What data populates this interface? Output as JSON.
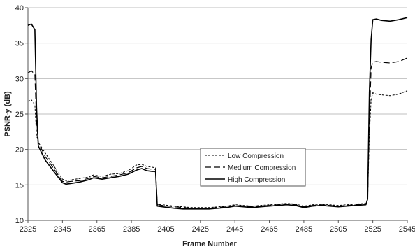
{
  "chart_data": {
    "type": "line",
    "title": "",
    "xlabel": "Frame Number",
    "ylabel": "PSNR-y (dB)",
    "xlim": [
      2325,
      2545
    ],
    "ylim": [
      10,
      40
    ],
    "x_ticks": [
      2325,
      2345,
      2365,
      2385,
      2405,
      2425,
      2445,
      2465,
      2485,
      2505,
      2525,
      2545
    ],
    "y_ticks": [
      10,
      15,
      20,
      25,
      30,
      35,
      40
    ],
    "grid": "horizontal",
    "legend_position": "center",
    "series": [
      {
        "name": "Low Compression",
        "style": "dashed-short",
        "color": "#000000",
        "points": [
          [
            2325,
            26.8
          ],
          [
            2327,
            27.0
          ],
          [
            2329,
            26.3
          ],
          [
            2330,
            22.0
          ],
          [
            2331,
            21.0
          ],
          [
            2335,
            19.5
          ],
          [
            2340,
            17.7
          ],
          [
            2345,
            15.8
          ],
          [
            2347,
            15.6
          ],
          [
            2350,
            15.7
          ],
          [
            2355,
            15.9
          ],
          [
            2360,
            16.1
          ],
          [
            2363,
            16.4
          ],
          [
            2368,
            16.2
          ],
          [
            2373,
            16.5
          ],
          [
            2378,
            16.6
          ],
          [
            2383,
            17.0
          ],
          [
            2388,
            17.8
          ],
          [
            2391,
            17.9
          ],
          [
            2394,
            17.6
          ],
          [
            2397,
            17.5
          ],
          [
            2399,
            17.4
          ],
          [
            2400,
            12.3
          ],
          [
            2403,
            12.2
          ],
          [
            2410,
            12.0
          ],
          [
            2415,
            11.9
          ],
          [
            2420,
            11.8
          ],
          [
            2430,
            11.8
          ],
          [
            2440,
            12.0
          ],
          [
            2445,
            12.2
          ],
          [
            2450,
            12.1
          ],
          [
            2455,
            12.0
          ],
          [
            2460,
            12.1
          ],
          [
            2465,
            12.2
          ],
          [
            2470,
            12.3
          ],
          [
            2475,
            12.4
          ],
          [
            2480,
            12.3
          ],
          [
            2485,
            12.0
          ],
          [
            2490,
            12.2
          ],
          [
            2495,
            12.3
          ],
          [
            2500,
            12.2
          ],
          [
            2505,
            12.1
          ],
          [
            2510,
            12.2
          ],
          [
            2515,
            12.3
          ],
          [
            2521,
            12.4
          ],
          [
            2522,
            13.0
          ],
          [
            2523,
            22.0
          ],
          [
            2524,
            27.0
          ],
          [
            2525,
            28.0
          ],
          [
            2527,
            27.8
          ],
          [
            2530,
            27.7
          ],
          [
            2535,
            27.6
          ],
          [
            2540,
            27.8
          ],
          [
            2545,
            28.3
          ]
        ]
      },
      {
        "name": "Medium Compression",
        "style": "dashed-long",
        "color": "#000000",
        "points": [
          [
            2325,
            30.8
          ],
          [
            2327,
            31.1
          ],
          [
            2329,
            30.6
          ],
          [
            2330,
            24.0
          ],
          [
            2331,
            21.0
          ],
          [
            2335,
            19.0
          ],
          [
            2340,
            17.3
          ],
          [
            2345,
            15.5
          ],
          [
            2347,
            15.4
          ],
          [
            2350,
            15.5
          ],
          [
            2355,
            15.6
          ],
          [
            2360,
            15.9
          ],
          [
            2363,
            16.2
          ],
          [
            2368,
            16.0
          ],
          [
            2373,
            16.2
          ],
          [
            2378,
            16.4
          ],
          [
            2383,
            16.7
          ],
          [
            2388,
            17.4
          ],
          [
            2391,
            17.6
          ],
          [
            2394,
            17.3
          ],
          [
            2397,
            17.2
          ],
          [
            2399,
            17.2
          ],
          [
            2400,
            12.2
          ],
          [
            2403,
            12.1
          ],
          [
            2410,
            11.9
          ],
          [
            2415,
            11.8
          ],
          [
            2420,
            11.7
          ],
          [
            2430,
            11.7
          ],
          [
            2440,
            11.9
          ],
          [
            2445,
            12.1
          ],
          [
            2450,
            12.0
          ],
          [
            2455,
            11.9
          ],
          [
            2460,
            12.0
          ],
          [
            2465,
            12.1
          ],
          [
            2470,
            12.2
          ],
          [
            2475,
            12.3
          ],
          [
            2480,
            12.2
          ],
          [
            2485,
            11.9
          ],
          [
            2490,
            12.1
          ],
          [
            2495,
            12.2
          ],
          [
            2500,
            12.1
          ],
          [
            2505,
            12.0
          ],
          [
            2510,
            12.1
          ],
          [
            2515,
            12.2
          ],
          [
            2521,
            12.3
          ],
          [
            2522,
            13.0
          ],
          [
            2523,
            24.0
          ],
          [
            2524,
            31.5
          ],
          [
            2525,
            32.3
          ],
          [
            2527,
            32.4
          ],
          [
            2530,
            32.3
          ],
          [
            2535,
            32.2
          ],
          [
            2540,
            32.4
          ],
          [
            2545,
            32.9
          ]
        ]
      },
      {
        "name": "High Compression",
        "style": "solid",
        "color": "#000000",
        "points": [
          [
            2325,
            37.5
          ],
          [
            2327,
            37.7
          ],
          [
            2329,
            36.9
          ],
          [
            2330,
            26.0
          ],
          [
            2331,
            20.5
          ],
          [
            2335,
            18.5
          ],
          [
            2340,
            16.9
          ],
          [
            2345,
            15.3
          ],
          [
            2347,
            15.1
          ],
          [
            2350,
            15.2
          ],
          [
            2355,
            15.4
          ],
          [
            2360,
            15.7
          ],
          [
            2363,
            16.0
          ],
          [
            2368,
            15.8
          ],
          [
            2373,
            16.0
          ],
          [
            2378,
            16.2
          ],
          [
            2383,
            16.5
          ],
          [
            2388,
            17.1
          ],
          [
            2391,
            17.3
          ],
          [
            2394,
            17.0
          ],
          [
            2397,
            16.9
          ],
          [
            2399,
            16.9
          ],
          [
            2400,
            12.0
          ],
          [
            2403,
            11.9
          ],
          [
            2410,
            11.7
          ],
          [
            2415,
            11.6
          ],
          [
            2420,
            11.6
          ],
          [
            2430,
            11.6
          ],
          [
            2440,
            11.8
          ],
          [
            2445,
            12.0
          ],
          [
            2450,
            11.9
          ],
          [
            2455,
            11.8
          ],
          [
            2460,
            11.9
          ],
          [
            2465,
            12.0
          ],
          [
            2470,
            12.1
          ],
          [
            2475,
            12.2
          ],
          [
            2480,
            12.1
          ],
          [
            2485,
            11.8
          ],
          [
            2490,
            12.0
          ],
          [
            2495,
            12.1
          ],
          [
            2500,
            12.0
          ],
          [
            2505,
            11.9
          ],
          [
            2510,
            12.0
          ],
          [
            2515,
            12.1
          ],
          [
            2521,
            12.2
          ],
          [
            2522,
            13.0
          ],
          [
            2523,
            28.0
          ],
          [
            2524,
            35.5
          ],
          [
            2525,
            38.3
          ],
          [
            2527,
            38.4
          ],
          [
            2530,
            38.2
          ],
          [
            2535,
            38.1
          ],
          [
            2540,
            38.3
          ],
          [
            2545,
            38.6
          ]
        ]
      }
    ]
  }
}
